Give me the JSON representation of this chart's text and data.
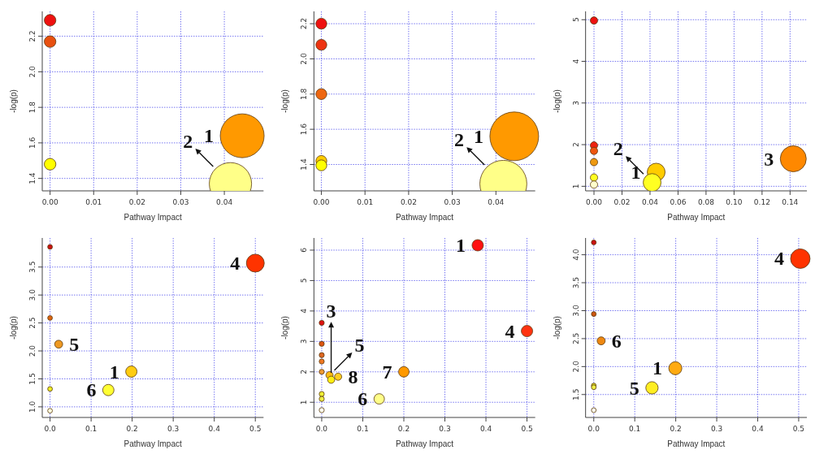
{
  "chart_data": [
    {
      "type": "bubble",
      "xlabel": "Pathway Impact",
      "ylabel": "-log(p)",
      "grid": true,
      "marker": "circle",
      "x": [
        0,
        0,
        0,
        0.0441,
        0.0414
      ],
      "values": [
        2.29,
        2.17,
        1.48,
        1.64,
        1.37
      ],
      "sizes": [
        0.07,
        0.07,
        0.07,
        1,
        0.93
      ],
      "colors": [
        "#ee1111",
        "#e85010",
        "#ffff00",
        "#ff9900",
        "#ffff88"
      ],
      "xlim": [
        -0.0018,
        0.049
      ],
      "ylim": [
        1.33,
        2.34
      ],
      "xticks": [
        {
          "value": 0,
          "label": "0.00"
        },
        {
          "value": 0.01,
          "label": "0.01"
        },
        {
          "value": 0.02,
          "label": "0.02"
        },
        {
          "value": 0.03,
          "label": "0.03"
        },
        {
          "value": 0.04,
          "label": "0.04"
        }
      ],
      "yticks": [
        1.4,
        1.6,
        1.8,
        {
          "value": 2,
          "label": "2.0"
        },
        2.2
      ],
      "annotations": [
        {
          "text": "1",
          "x": 0.0441,
          "y": 1.64
        },
        {
          "text": "2",
          "x": 0.0414,
          "y": 1.37
        }
      ]
    },
    {
      "type": "bubble",
      "xlabel": "Pathway Impact",
      "ylabel": "-log(p)",
      "grid": true,
      "marker": "circle",
      "x": [
        0,
        0,
        0,
        0,
        0,
        0.0442,
        0.0417
      ],
      "values": [
        2.2,
        2.08,
        1.8,
        1.42,
        1.395,
        1.56,
        1.29
      ],
      "sizes": [
        0.05,
        0.05,
        0.05,
        0.05,
        0.05,
        1,
        0.93
      ],
      "colors": [
        "#ee1111",
        "#ee3311",
        "#ee6611",
        "#ffcc00",
        "#ffff00",
        "#ff9900",
        "#ffff88"
      ],
      "xlim": [
        -0.0017,
        0.049
      ],
      "ylim": [
        1.25,
        2.27
      ],
      "xticks": [
        {
          "value": 0,
          "label": "0.00"
        },
        {
          "value": 0.01,
          "label": "0.01"
        },
        {
          "value": 0.02,
          "label": "0.02"
        },
        {
          "value": 0.03,
          "label": "0.03"
        },
        {
          "value": 0.04,
          "label": "0.04"
        }
      ],
      "yticks": [
        1.4,
        1.6,
        1.8,
        {
          "value": 2,
          "label": "2.0"
        },
        2.2
      ],
      "annotations": [
        {
          "text": "1",
          "x": 0.0442,
          "y": 1.56
        },
        {
          "text": "2",
          "x": 0.0417,
          "y": 1.29
        }
      ]
    },
    {
      "type": "bubble",
      "xlabel": "Pathway Impact",
      "ylabel": "-log(p)",
      "grid": true,
      "marker": "circle",
      "x": [
        0,
        0,
        0,
        0,
        0,
        0,
        0.0444,
        0.0415,
        0.1423
      ],
      "values": [
        4.98,
        1.98,
        1.85,
        1.58,
        1.21,
        1.04,
        1.34,
        1.09,
        1.66
      ],
      "sizes": [
        0.08,
        0.08,
        0.08,
        0.08,
        0.08,
        0.08,
        0.47,
        0.47,
        1
      ],
      "colors": [
        "#ee1111",
        "#ee2211",
        "#ee5511",
        "#ee9911",
        "#ffff22",
        "#ffffcc",
        "#ffcc00",
        "#ffff22",
        "#ff8800"
      ],
      "xlim": [
        -0.006,
        0.152
      ],
      "ylim": [
        0.89,
        5.2
      ],
      "xticks": [
        {
          "value": 0,
          "label": "0.00"
        },
        {
          "value": 0.02,
          "label": "0.02"
        },
        {
          "value": 0.04,
          "label": "0.04"
        },
        {
          "value": 0.06,
          "label": "0.06"
        },
        {
          "value": 0.08,
          "label": "0.08"
        },
        {
          "value": 0.1,
          "label": "0.10"
        },
        {
          "value": 0.12,
          "label": "0.12"
        },
        {
          "value": 0.14,
          "label": "0.14"
        }
      ],
      "yticks": [
        1,
        2,
        3,
        4,
        5
      ],
      "annotations": [
        {
          "text": "1",
          "x": 0.0444,
          "y": 1.34
        },
        {
          "text": "2",
          "x": 0.0415,
          "y": 1.09
        },
        {
          "text": "3",
          "x": 0.1423,
          "y": 1.66
        }
      ]
    },
    {
      "type": "bubble",
      "xlabel": "Pathway Impact",
      "ylabel": "-log(p)",
      "grid": true,
      "marker": "circle",
      "x": [
        0,
        0,
        0,
        0,
        0.021,
        0.198,
        0.142,
        0.5
      ],
      "values": [
        3.86,
        2.59,
        1.32,
        0.93,
        2.12,
        1.63,
        1.3,
        3.57
      ],
      "sizes": [
        0.07,
        0.07,
        0.07,
        0.07,
        0.2,
        0.4,
        0.4,
        1
      ],
      "colors": [
        "#cc1111",
        "#dd6611",
        "#eeee22",
        "#ffffdd",
        "#ee9922",
        "#ffcc11",
        "#ffff33",
        "#ff3300"
      ],
      "xlim": [
        -0.019,
        0.52
      ],
      "ylim": [
        0.81,
        4.02
      ],
      "xticks": [
        {
          "value": 0,
          "label": "0.0"
        },
        0.1,
        0.2,
        0.3,
        0.4,
        0.5
      ],
      "yticks": [
        {
          "value": 1,
          "label": "1.0"
        },
        1.5,
        {
          "value": 2,
          "label": "2.0"
        },
        2.5,
        {
          "value": 3,
          "label": "3.0"
        },
        3.5
      ],
      "annotations": [
        {
          "text": "4",
          "x": 0.5,
          "y": 3.57
        },
        {
          "text": "5",
          "x": 0.021,
          "y": 2.12
        },
        {
          "text": "1",
          "x": 0.198,
          "y": 1.63
        },
        {
          "text": "6",
          "x": 0.142,
          "y": 1.3
        }
      ]
    },
    {
      "type": "bubble",
      "xlabel": "Pathway Impact",
      "ylabel": "-log(p)",
      "grid": true,
      "marker": "circle",
      "x": [
        0,
        0,
        0,
        0,
        0,
        0,
        0,
        0,
        0.019,
        0.023,
        0.04,
        0.2,
        0.14,
        0.38,
        0.5
      ],
      "values": [
        3.61,
        2.92,
        2.55,
        2.34,
        2,
        1.27,
        1.11,
        0.74,
        1.89,
        1.74,
        1.84,
        2,
        1.11,
        6.16,
        3.34
      ],
      "sizes": [
        0.2,
        0.2,
        0.2,
        0.2,
        0.2,
        0.2,
        0.2,
        0.2,
        0.4,
        0.4,
        0.4,
        0.85,
        0.85,
        1,
        1
      ],
      "colors": [
        "#dd1111",
        "#dd5511",
        "#dd6622",
        "#ee7722",
        "#ee9933",
        "#eeee33",
        "#eeee44",
        "#ffffee",
        "#ffbb11",
        "#ffee11",
        "#ffcc22",
        "#ff9900",
        "#ffff88",
        "#ff1111",
        "#ff3311"
      ],
      "xlim": [
        -0.019,
        0.52
      ],
      "ylim": [
        0.5,
        6.4
      ],
      "xticks": [
        {
          "value": 0,
          "label": "0.0"
        },
        0.1,
        0.2,
        0.3,
        0.4,
        0.5
      ],
      "yticks": [
        1,
        2,
        3,
        4,
        5,
        6
      ],
      "annotations": [
        {
          "text": "1",
          "x": 0.38,
          "y": 6.16
        },
        {
          "text": "4",
          "x": 0.5,
          "y": 3.34
        },
        {
          "text": "5",
          "x": 0.019,
          "y": 1.89
        },
        {
          "text": "8",
          "x": 0.04,
          "y": 1.84
        },
        {
          "text": "7",
          "x": 0.2,
          "y": 2
        },
        {
          "text": "3",
          "x": 0.023,
          "y": 1.74
        },
        {
          "text": "6",
          "x": 0.14,
          "y": 1.11
        }
      ]
    },
    {
      "type": "bubble",
      "xlabel": "Pathway Impact",
      "ylabel": "-log(p)",
      "grid": true,
      "marker": "circle",
      "x": [
        0,
        0,
        0,
        0,
        0,
        0.018,
        0.199,
        0.142,
        0.504
      ],
      "values": [
        4.22,
        2.94,
        1.66,
        1.63,
        1.22,
        2.46,
        1.97,
        1.62,
        3.93
      ],
      "sizes": [
        0.06,
        0.06,
        0.06,
        0.06,
        0.06,
        0.17,
        0.45,
        0.4,
        1
      ],
      "colors": [
        "#cc1111",
        "#cc5511",
        "#dddd22",
        "#eeee44",
        "#ffffee",
        "#ee8811",
        "#ffaa11",
        "#ffee22",
        "#ff3300"
      ],
      "xlim": [
        -0.02,
        0.52
      ],
      "ylim": [
        1.09,
        4.3
      ],
      "xticks": [
        {
          "value": 0,
          "label": "0.0"
        },
        0.1,
        0.2,
        0.3,
        0.4,
        0.5
      ],
      "yticks": [
        1.5,
        {
          "value": 2,
          "label": "2.0"
        },
        2.5,
        {
          "value": 3,
          "label": "3.0"
        },
        3.5,
        {
          "value": 4,
          "label": "4.0"
        }
      ],
      "annotations": [
        {
          "text": "4",
          "x": 0.504,
          "y": 3.93
        },
        {
          "text": "6",
          "x": 0.018,
          "y": 2.46
        },
        {
          "text": "1",
          "x": 0.199,
          "y": 1.97
        },
        {
          "text": "5",
          "x": 0.142,
          "y": 1.62
        }
      ]
    }
  ]
}
